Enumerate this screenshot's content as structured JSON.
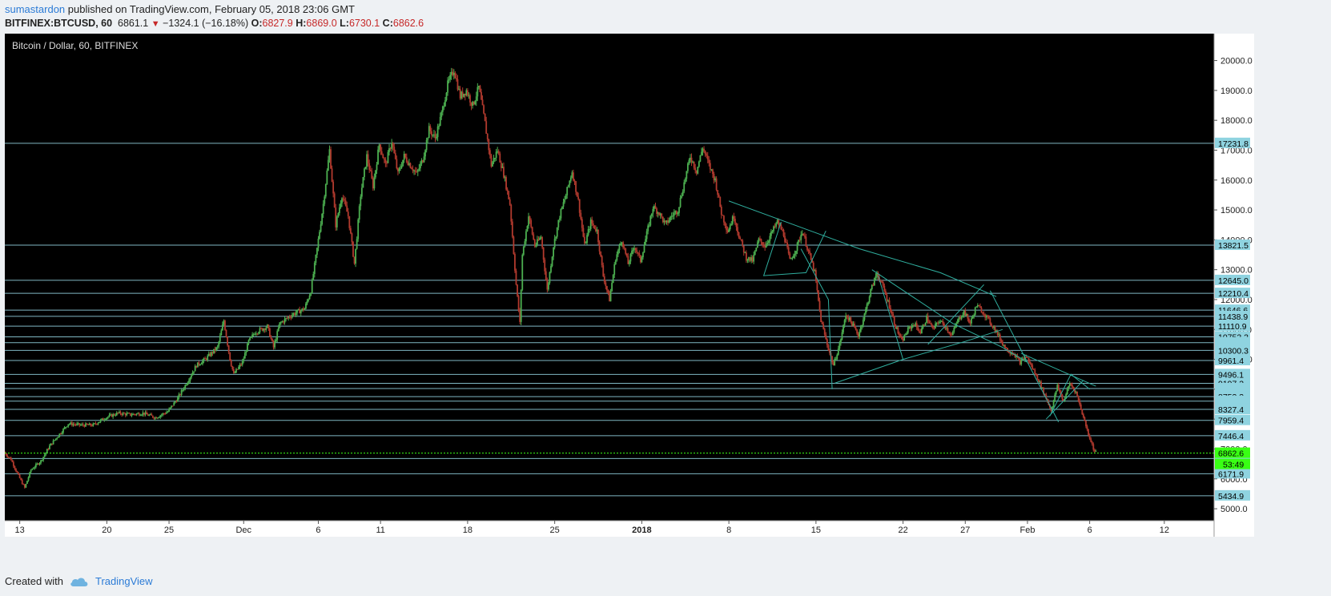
{
  "header": {
    "author": "sumastardon",
    "published": " published on TradingView.com, February 05, 2018 23:06 GMT",
    "symbol": "BITFINEX:BTCUSD, 60",
    "last": "6861.1",
    "change": "−1324.1 (−16.18%)",
    "o_label": "O:",
    "o": "6827.9",
    "h_label": "H:",
    "h": "6869.0",
    "l_label": "L:",
    "l": "6730.1",
    "c_label": "C:",
    "c": "6862.6"
  },
  "footer": {
    "created_with": "Created with",
    "brand": "TradingView"
  },
  "chart_data": {
    "type": "candlestick",
    "title": "Bitcoin / Dollar, 60, BITFINEX",
    "ylim": [
      4600,
      20900
    ],
    "y_ticks": [
      5000,
      6000,
      7000,
      8000,
      9000,
      10000,
      11000,
      12000,
      13000,
      14000,
      15000,
      16000,
      17000,
      18000,
      19000,
      20000
    ],
    "y_tick_labels": [
      "5000.0",
      "6000.0",
      "7000.0",
      "8000.0",
      "9000.0",
      "10000.0",
      "11000.0",
      "12000.0",
      "13000.0",
      "14000.0",
      "15000.0",
      "16000.0",
      "17000.0",
      "18000.0",
      "19000.0",
      "20000.0"
    ],
    "x_ticks": [
      {
        "label": "13",
        "day": 13,
        "bold": false
      },
      {
        "label": "20",
        "day": 20,
        "bold": false
      },
      {
        "label": "25",
        "day": 25,
        "bold": false
      },
      {
        "label": "Dec",
        "day": 31,
        "bold": false
      },
      {
        "label": "6",
        "day": 37,
        "bold": false
      },
      {
        "label": "11",
        "day": 42,
        "bold": false
      },
      {
        "label": "18",
        "day": 49,
        "bold": false
      },
      {
        "label": "25",
        "day": 56,
        "bold": false
      },
      {
        "label": "2018",
        "day": 63,
        "bold": true
      },
      {
        "label": "8",
        "day": 70,
        "bold": false
      },
      {
        "label": "15",
        "day": 77,
        "bold": false
      },
      {
        "label": "22",
        "day": 84,
        "bold": false
      },
      {
        "label": "27",
        "day": 89,
        "bold": false
      },
      {
        "label": "Feb",
        "day": 94,
        "bold": false
      },
      {
        "label": "6",
        "day": 99,
        "bold": false
      },
      {
        "label": "12",
        "day": 105,
        "bold": false
      }
    ],
    "x_range_days": [
      11.8,
      109
    ],
    "levels": [
      {
        "price": 17231.8,
        "label": "17231.8"
      },
      {
        "price": 13821.5,
        "label": "13821.5"
      },
      {
        "price": 12645.0,
        "label": "12645.0"
      },
      {
        "price": 12210.4,
        "label": "12210.4"
      },
      {
        "price": 11646.6,
        "label": "11646.6"
      },
      {
        "price": 11438.9,
        "label": "11438.9"
      },
      {
        "price": 11110.9,
        "label": "11110.9"
      },
      {
        "price": 10752.2,
        "label": "10752.2"
      },
      {
        "price": 10560.0,
        "label": ""
      },
      {
        "price": 10300.3,
        "label": "10300.3"
      },
      {
        "price": 9961.4,
        "label": "9961.4"
      },
      {
        "price": 9496.1,
        "label": "9496.1"
      },
      {
        "price": 9197.2,
        "label": "9197.2"
      },
      {
        "price": 9025.0,
        "label": ""
      },
      {
        "price": 8753.3,
        "label": "8753.3"
      },
      {
        "price": 8600.0,
        "label": ""
      },
      {
        "price": 8327.4,
        "label": "8327.4"
      },
      {
        "price": 7959.4,
        "label": "7959.4"
      },
      {
        "price": 7446.4,
        "label": "7446.4"
      },
      {
        "price": 6680.0,
        "label": ""
      },
      {
        "price": 6171.9,
        "label": "6171.9"
      },
      {
        "price": 5434.9,
        "label": "5434.9"
      }
    ],
    "current_price": {
      "price": 6862.6,
      "label": "6862.6",
      "countdown": "53:49"
    },
    "price_path": [
      [
        11.8,
        6900
      ],
      [
        12.4,
        6650
      ],
      [
        13.0,
        6100
      ],
      [
        13.5,
        5700
      ],
      [
        14.0,
        6300
      ],
      [
        14.8,
        6600
      ],
      [
        15.5,
        7100
      ],
      [
        16.3,
        7500
      ],
      [
        17.0,
        7850
      ],
      [
        18.0,
        7800
      ],
      [
        19.0,
        7800
      ],
      [
        20.0,
        8050
      ],
      [
        21.0,
        8200
      ],
      [
        22.0,
        8150
      ],
      [
        23.0,
        8200
      ],
      [
        24.0,
        8050
      ],
      [
        25.0,
        8250
      ],
      [
        25.8,
        8700
      ],
      [
        26.5,
        9200
      ],
      [
        27.3,
        9800
      ],
      [
        28.0,
        10000
      ],
      [
        29.0,
        10400
      ],
      [
        29.5,
        11300
      ],
      [
        30.0,
        10000
      ],
      [
        30.3,
        9500
      ],
      [
        31.0,
        9900
      ],
      [
        31.5,
        10600
      ],
      [
        32.0,
        10900
      ],
      [
        33.0,
        11100
      ],
      [
        33.5,
        10400
      ],
      [
        34.0,
        11200
      ],
      [
        35.0,
        11500
      ],
      [
        36.0,
        11700
      ],
      [
        36.5,
        12300
      ],
      [
        37.0,
        13700
      ],
      [
        37.5,
        15200
      ],
      [
        38.0,
        17000
      ],
      [
        38.5,
        14500
      ],
      [
        39.0,
        15500
      ],
      [
        39.5,
        14800
      ],
      [
        40.0,
        13200
      ],
      [
        40.5,
        15500
      ],
      [
        41.0,
        16800
      ],
      [
        41.5,
        15800
      ],
      [
        42.0,
        17200
      ],
      [
        42.5,
        16500
      ],
      [
        43.0,
        17300
      ],
      [
        43.5,
        16200
      ],
      [
        44.0,
        16800
      ],
      [
        44.5,
        16500
      ],
      [
        45.0,
        16200
      ],
      [
        45.5,
        16700
      ],
      [
        46.0,
        17700
      ],
      [
        46.5,
        17400
      ],
      [
        47.0,
        18200
      ],
      [
        47.5,
        19200
      ],
      [
        48.0,
        19700
      ],
      [
        48.5,
        18800
      ],
      [
        49.0,
        19000
      ],
      [
        49.5,
        18500
      ],
      [
        50.0,
        19100
      ],
      [
        50.5,
        17900
      ],
      [
        51.0,
        16500
      ],
      [
        51.5,
        17000
      ],
      [
        52.0,
        16200
      ],
      [
        52.5,
        15200
      ],
      [
        53.0,
        12500
      ],
      [
        53.3,
        11200
      ],
      [
        53.5,
        13500
      ],
      [
        54.0,
        14800
      ],
      [
        54.5,
        13800
      ],
      [
        55.0,
        14100
      ],
      [
        55.5,
        12300
      ],
      [
        56.0,
        13800
      ],
      [
        56.5,
        14800
      ],
      [
        57.0,
        15500
      ],
      [
        57.5,
        16300
      ],
      [
        58.0,
        15300
      ],
      [
        58.5,
        13800
      ],
      [
        59.0,
        14600
      ],
      [
        59.5,
        14300
      ],
      [
        60.0,
        12800
      ],
      [
        60.5,
        12000
      ],
      [
        61.0,
        13400
      ],
      [
        61.5,
        14000
      ],
      [
        62.0,
        13200
      ],
      [
        62.5,
        13800
      ],
      [
        63.0,
        13300
      ],
      [
        63.5,
        14200
      ],
      [
        64.0,
        15100
      ],
      [
        64.5,
        14900
      ],
      [
        65.0,
        14500
      ],
      [
        65.5,
        14800
      ],
      [
        66.0,
        15000
      ],
      [
        66.5,
        15900
      ],
      [
        67.0,
        16800
      ],
      [
        67.5,
        16300
      ],
      [
        68.0,
        17100
      ],
      [
        68.5,
        16500
      ],
      [
        69.0,
        16000
      ],
      [
        69.5,
        14900
      ],
      [
        70.0,
        14300
      ],
      [
        70.5,
        14800
      ],
      [
        71.0,
        14000
      ],
      [
        71.5,
        13400
      ],
      [
        72.0,
        13300
      ],
      [
        72.5,
        14000
      ],
      [
        73.0,
        13800
      ],
      [
        73.5,
        14200
      ],
      [
        74.0,
        14600
      ],
      [
        74.5,
        14200
      ],
      [
        75.0,
        13300
      ],
      [
        75.5,
        13700
      ],
      [
        76.0,
        14300
      ],
      [
        76.5,
        13600
      ],
      [
        77.0,
        12900
      ],
      [
        77.5,
        11300
      ],
      [
        78.0,
        10500
      ],
      [
        78.5,
        9800
      ],
      [
        79.0,
        10500
      ],
      [
        79.5,
        11500
      ],
      [
        80.0,
        11200
      ],
      [
        80.5,
        10800
      ],
      [
        81.0,
        11500
      ],
      [
        81.5,
        12300
      ],
      [
        82.0,
        12900
      ],
      [
        82.5,
        12400
      ],
      [
        83.0,
        11800
      ],
      [
        83.5,
        11100
      ],
      [
        84.0,
        10600
      ],
      [
        84.5,
        11000
      ],
      [
        85.0,
        11200
      ],
      [
        85.5,
        10900
      ],
      [
        86.0,
        11400
      ],
      [
        86.5,
        11000
      ],
      [
        87.0,
        11300
      ],
      [
        87.5,
        11100
      ],
      [
        88.0,
        10800
      ],
      [
        88.5,
        11300
      ],
      [
        89.0,
        11600
      ],
      [
        89.5,
        11200
      ],
      [
        90.0,
        11800
      ],
      [
        90.5,
        11600
      ],
      [
        91.0,
        11300
      ],
      [
        91.5,
        11000
      ],
      [
        92.0,
        10600
      ],
      [
        92.5,
        10300
      ],
      [
        93.0,
        10200
      ],
      [
        93.5,
        9900
      ],
      [
        94.0,
        10100
      ],
      [
        94.5,
        9700
      ],
      [
        95.0,
        9300
      ],
      [
        95.5,
        8800
      ],
      [
        96.0,
        8300
      ],
      [
        96.5,
        9100
      ],
      [
        97.0,
        8600
      ],
      [
        97.5,
        9200
      ],
      [
        98.0,
        8900
      ],
      [
        98.5,
        8200
      ],
      [
        99.0,
        7500
      ],
      [
        99.5,
        6900
      ]
    ],
    "trendlines": [
      [
        [
          70.0,
          15300
        ],
        [
          80.5,
          13700
        ],
        [
          87.0,
          12900
        ],
        [
          91.5,
          12100
        ]
      ],
      [
        [
          75.8,
          13700
        ],
        [
          78.0,
          12000
        ],
        [
          78.3,
          9000
        ]
      ],
      [
        [
          78.5,
          9200
        ],
        [
          84.0,
          10000
        ],
        [
          89.0,
          10600
        ],
        [
          92.0,
          11000
        ]
      ],
      [
        [
          77.8,
          14300
        ],
        [
          76.2,
          12900
        ],
        [
          72.8,
          12800
        ],
        [
          74.2,
          14600
        ]
      ],
      [
        [
          81.5,
          13000
        ],
        [
          88.0,
          11200
        ],
        [
          92.0,
          10400
        ],
        [
          94.0,
          9900
        ]
      ],
      [
        [
          84.0,
          10000
        ],
        [
          82.0,
          12800
        ]
      ],
      [
        [
          86.0,
          10500
        ],
        [
          90.5,
          12500
        ]
      ],
      [
        [
          91.0,
          12300
        ],
        [
          96.5,
          7900
        ]
      ],
      [
        [
          95.5,
          8000
        ],
        [
          98.5,
          9300
        ]
      ],
      [
        [
          95.8,
          8100
        ],
        [
          97.5,
          9500
        ],
        [
          99.0,
          9000
        ]
      ],
      [
        [
          93.5,
          10200
        ],
        [
          99.5,
          9100
        ]
      ]
    ]
  },
  "colors": {
    "chart_bg": "#000000",
    "grid_level": "#7fb7c3",
    "trendline": "#2fae9e",
    "candle_up": "#4caf50",
    "candle_down": "#b23a2e",
    "axis_bg": "#ffffff",
    "level_box": "#8fd3e0",
    "current_box": "#39ff14",
    "dotted": "#39ff14"
  }
}
